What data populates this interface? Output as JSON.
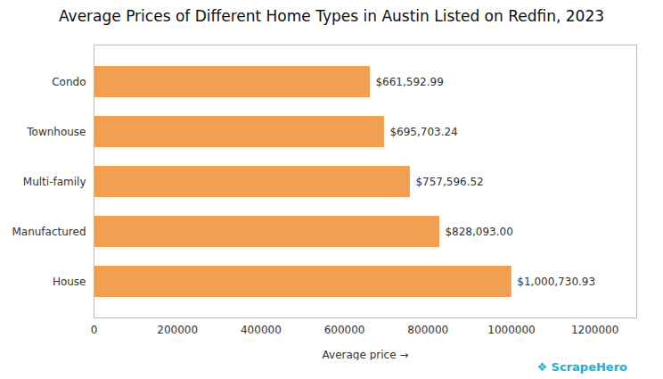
{
  "chart_data": {
    "type": "bar",
    "orientation": "horizontal",
    "title": "Average Prices of Different Home Types in Austin Listed on Redfin, 2023",
    "xlabel": "Average price",
    "categories": [
      "House",
      "Manufactured",
      "Multi-family",
      "Townhouse",
      "Condo"
    ],
    "values": [
      1000730.93,
      828093.0,
      757596.52,
      695703.24,
      661592.99
    ],
    "value_labels": [
      "$1,000,730.93",
      "$828,093.00",
      "$757,596.52",
      "$695,703.24",
      "$661,592.99"
    ],
    "data_labels": true,
    "color": "#F0A050",
    "xlim": [
      0,
      1300000
    ],
    "xticks": [
      0,
      200000,
      400000,
      600000,
      800000,
      1000000,
      1200000
    ],
    "grid": false,
    "annotations": [
      {
        "text": "❖ ScrapeHero",
        "color": "#2AACCC"
      }
    ]
  }
}
